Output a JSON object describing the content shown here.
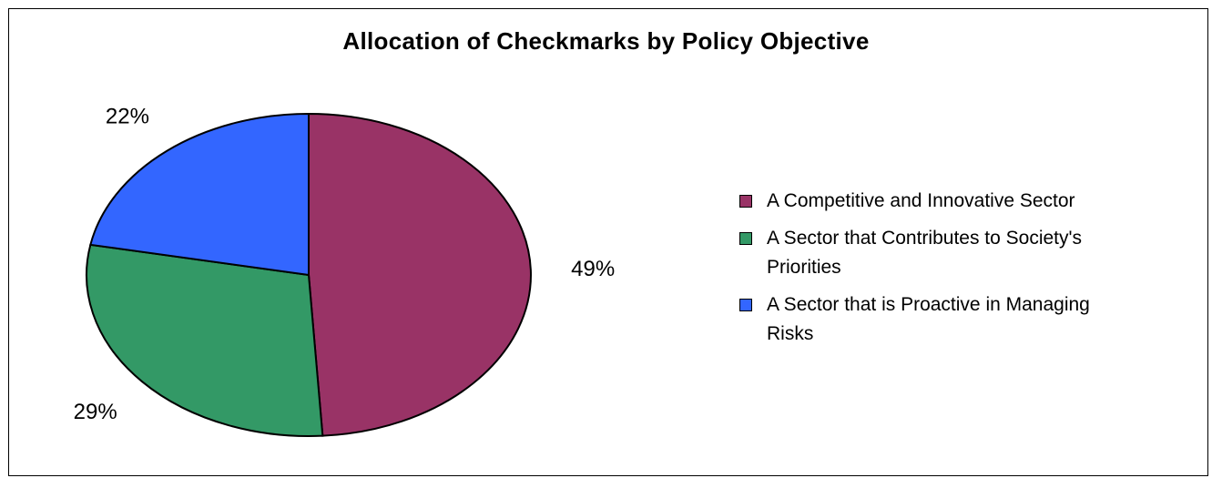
{
  "chart_data": {
    "type": "pie",
    "title": "Allocation of Checkmarks by Policy Objective",
    "categories": [
      "A Competitive and Innovative Sector",
      "A Sector that Contributes to Society's Priorities",
      "A Sector that is Proactive in Managing Risks"
    ],
    "values": [
      49,
      29,
      22
    ],
    "data_labels": [
      "49%",
      "29%",
      "22%"
    ],
    "colors": [
      "#993366",
      "#339966",
      "#3366FF"
    ],
    "legend_position": "right"
  }
}
